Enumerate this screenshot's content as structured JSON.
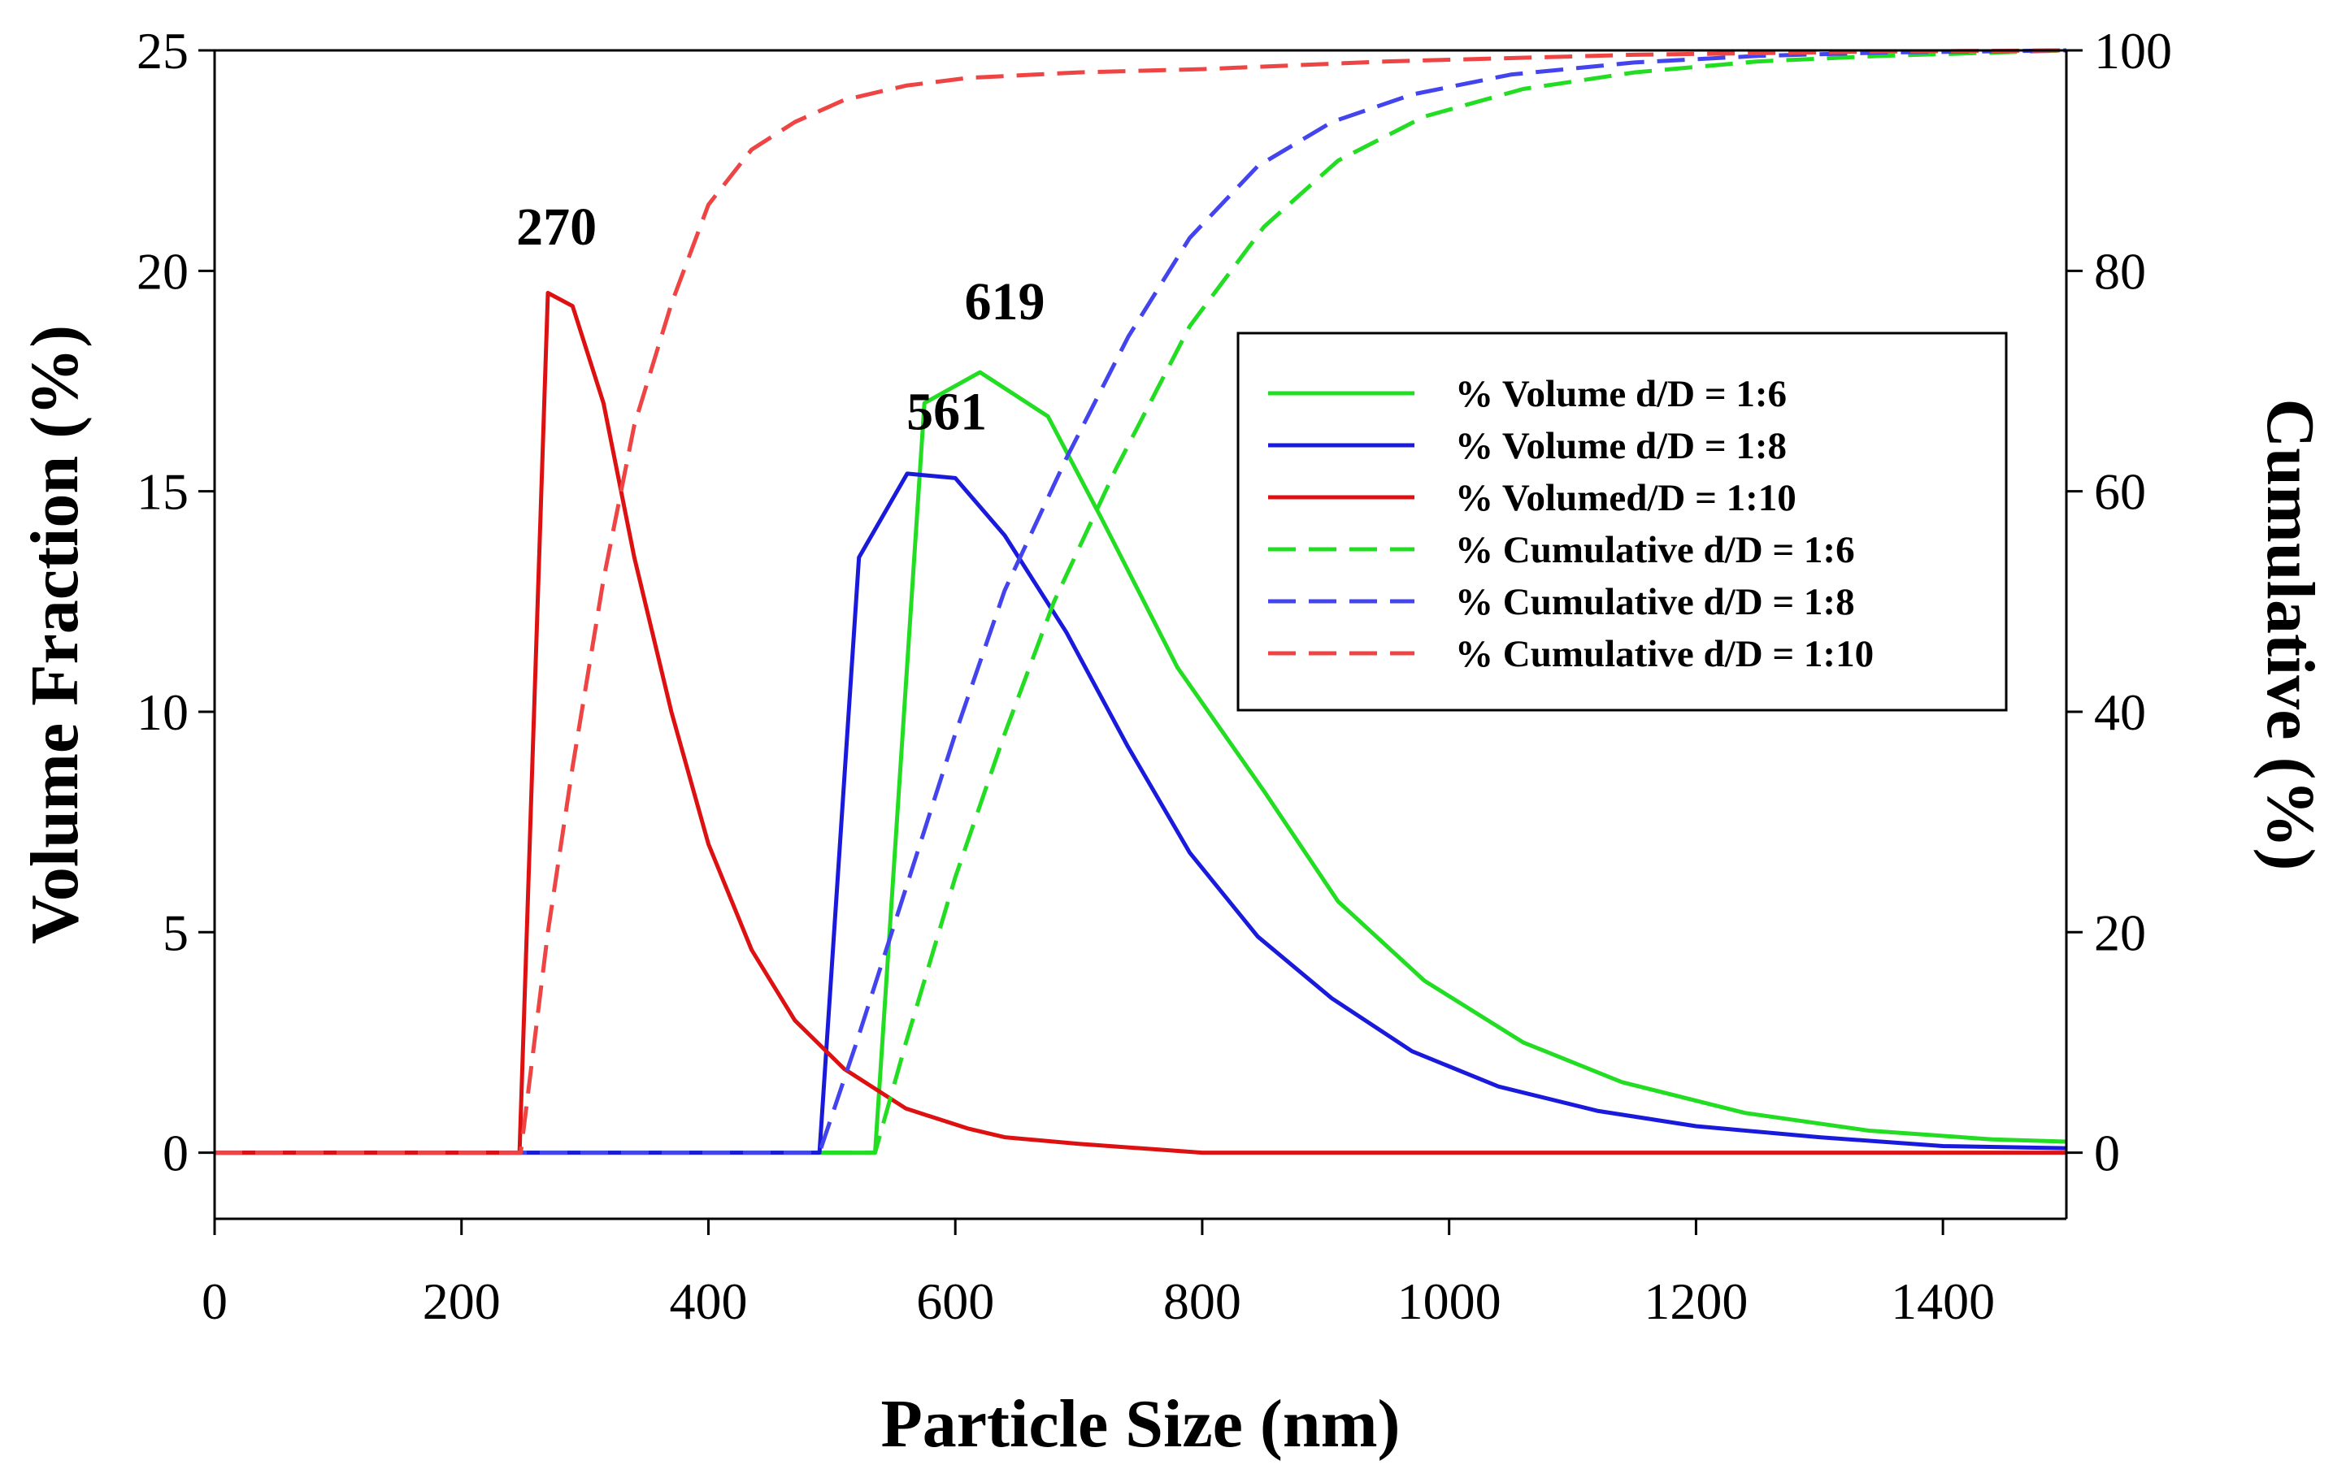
{
  "chart_data": {
    "type": "line",
    "xlabel": "Particle Size (nm)",
    "ylabel": "Volume Fraction (%)",
    "y2label": "Cumulative (%)",
    "xlim": [
      0,
      1500
    ],
    "ylim": [
      -1.5,
      25
    ],
    "y2lim": [
      -6,
      100
    ],
    "xticks": [
      0,
      200,
      400,
      600,
      800,
      1000,
      1200,
      1400
    ],
    "yticks": [
      0,
      5,
      10,
      15,
      20,
      25
    ],
    "y2ticks": [
      0,
      20,
      40,
      60,
      80,
      100
    ],
    "legend_position": "upper-right",
    "series": [
      {
        "name": "% Volume d/D = 1:6",
        "axis": "left",
        "style": "solid",
        "color": "#22dd22",
        "x": [
          0,
          535,
          575,
          620,
          675,
          720,
          780,
          850,
          910,
          980,
          1060,
          1140,
          1240,
          1340,
          1440,
          1500
        ],
        "y": [
          0,
          0,
          17.0,
          17.7,
          16.7,
          14.3,
          11.0,
          8.2,
          5.7,
          3.9,
          2.5,
          1.6,
          0.9,
          0.5,
          0.3,
          0.25
        ]
      },
      {
        "name": "% Volume d/D = 1:8",
        "axis": "left",
        "style": "solid",
        "color": "#1a1adc",
        "x": [
          0,
          490,
          522,
          561,
          600,
          640,
          690,
          740,
          790,
          845,
          905,
          970,
          1040,
          1120,
          1200,
          1300,
          1400,
          1500
        ],
        "y": [
          0,
          0,
          13.5,
          15.4,
          15.3,
          14.0,
          11.8,
          9.2,
          6.8,
          4.9,
          3.5,
          2.3,
          1.5,
          0.95,
          0.6,
          0.35,
          0.15,
          0.1
        ]
      },
      {
        "name": "% Volumed/D = 1:10",
        "axis": "left",
        "style": "solid",
        "color": "#dd1111",
        "x": [
          0,
          247,
          270,
          290,
          315,
          340,
          370,
          400,
          435,
          470,
          510,
          560,
          610,
          640,
          700,
          760,
          800,
          1500
        ],
        "y": [
          0,
          0,
          19.5,
          19.2,
          17.0,
          13.5,
          10.0,
          7.0,
          4.6,
          3.0,
          1.9,
          1.0,
          0.55,
          0.35,
          0.2,
          0.08,
          0.0,
          0.0
        ]
      },
      {
        "name": "% Cumulative d/D = 1:6",
        "axis": "right",
        "style": "dashed",
        "color": "#22dd22",
        "x": [
          0,
          535,
          560,
          600,
          640,
          680,
          730,
          790,
          850,
          910,
          980,
          1060,
          1150,
          1250,
          1350,
          1500
        ],
        "y": [
          0,
          0,
          10,
          25,
          38,
          50,
          62,
          75,
          84,
          90,
          94,
          96.5,
          98,
          99,
          99.5,
          100
        ]
      },
      {
        "name": "% Cumulative d/D = 1:8",
        "axis": "right",
        "style": "dashed",
        "color": "#4444ee",
        "x": [
          0,
          490,
          520,
          560,
          600,
          640,
          690,
          740,
          790,
          845,
          905,
          970,
          1050,
          1150,
          1250,
          1350,
          1500
        ],
        "y": [
          0,
          0,
          10,
          24,
          38,
          51,
          63,
          74,
          83,
          89.5,
          93.5,
          96,
          97.8,
          98.9,
          99.5,
          99.8,
          100
        ]
      },
      {
        "name": "% Cumulative d/D = 1:10",
        "axis": "right",
        "style": "dashed",
        "color": "#ee4444",
        "x": [
          0,
          248,
          270,
          290,
          315,
          340,
          370,
          400,
          435,
          470,
          510,
          560,
          610,
          700,
          800,
          950,
          1150,
          1350,
          1500
        ],
        "y": [
          0,
          0,
          20,
          35,
          52,
          66,
          77,
          86,
          91,
          93.5,
          95.5,
          96.8,
          97.5,
          98,
          98.3,
          99,
          99.6,
          99.9,
          100
        ]
      }
    ],
    "annotations": [
      {
        "text": "270",
        "x": 277,
        "y": 20.6
      },
      {
        "text": "561",
        "x": 593,
        "y": 16.4
      },
      {
        "text": "619",
        "x": 640,
        "y": 18.9
      }
    ]
  }
}
